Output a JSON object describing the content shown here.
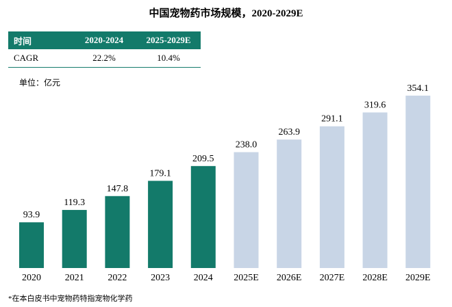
{
  "chart_data": {
    "type": "bar",
    "title": "中国宠物药市场规模，2020-2029E",
    "table": {
      "header": [
        "时间",
        "2020-2024",
        "2025-2029E"
      ],
      "rows": [
        [
          "CAGR",
          "22.2%",
          "10.4%"
        ]
      ]
    },
    "unit": "单位：亿元",
    "categories": [
      "2020",
      "2021",
      "2022",
      "2023",
      "2024",
      "2025E",
      "2026E",
      "2027E",
      "2028E",
      "2029E"
    ],
    "values": [
      93.9,
      119.3,
      147.8,
      179.1,
      209.5,
      238.0,
      263.9,
      291.1,
      319.6,
      354.1
    ],
    "value_labels": [
      "93.9",
      "119.3",
      "147.8",
      "179.1",
      "209.5",
      "238.0",
      "263.9",
      "291.1",
      "319.6",
      "354.1"
    ],
    "colors": [
      "#137a6a",
      "#137a6a",
      "#137a6a",
      "#137a6a",
      "#137a6a",
      "#c8d5e6",
      "#c8d5e6",
      "#c8d5e6",
      "#c8d5e6",
      "#c8d5e6"
    ],
    "footnote": "*在本白皮书中宠物药特指宠物化学药"
  }
}
